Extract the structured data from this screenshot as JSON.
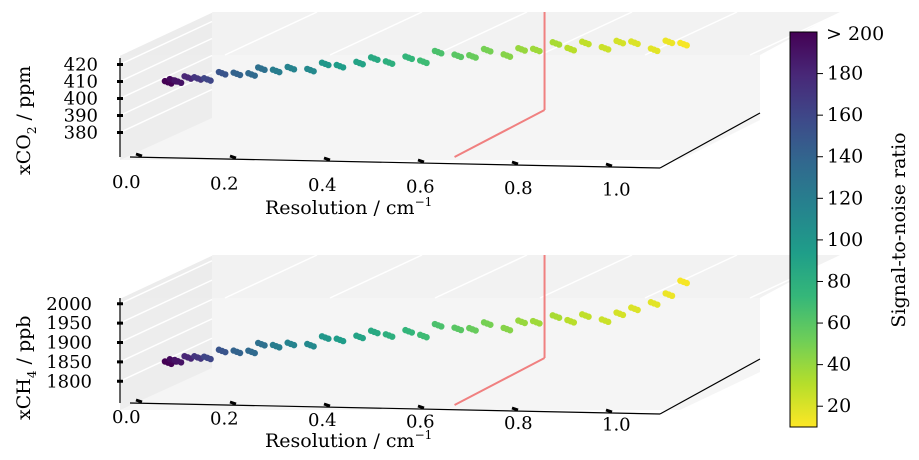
{
  "chart_data": [
    {
      "type": "scatter",
      "panel": "top",
      "xlabel": "Resolution / cm",
      "xlabel_sup": "−1",
      "ylabel": "xCO",
      "ylabel_sub": "2",
      "ylabel_unit": " / ppm",
      "xticks": [
        "0.0",
        "0.2",
        "0.4",
        "0.6",
        "0.8",
        "1.0"
      ],
      "xtick_values": [
        0.0,
        0.2,
        0.4,
        0.6,
        0.8,
        1.0
      ],
      "yticks": [
        "380",
        "390",
        "400",
        "410",
        "420"
      ],
      "ytick_values": [
        380,
        390,
        400,
        410,
        420
      ],
      "xlim": [
        0.0,
        1.1
      ],
      "ylim": [
        375,
        425
      ],
      "grid": true,
      "marker_line": {
        "x": 0.6,
        "color": "#f08080"
      },
      "series": [
        {
          "x": [
            0.01,
            0.02,
            0.03,
            0.05,
            0.07,
            0.09,
            0.12,
            0.15,
            0.18,
            0.2,
            0.23,
            0.26,
            0.3,
            0.33,
            0.36,
            0.4,
            0.43,
            0.46,
            0.5,
            0.53,
            0.56,
            0.6,
            0.63,
            0.66,
            0.7,
            0.73,
            0.76,
            0.8,
            0.83,
            0.86,
            0.9,
            0.93,
            0.96,
            1.0,
            1.03,
            1.06
          ],
          "y": [
            410,
            411,
            410,
            412,
            411,
            410,
            413,
            412,
            411,
            414,
            412,
            413,
            411,
            414,
            412,
            413,
            415,
            412,
            414,
            411,
            416,
            413,
            412,
            415,
            411,
            414,
            413,
            416,
            412,
            415,
            411,
            414,
            413,
            408,
            412,
            410
          ],
          "snr": [
            200,
            195,
            190,
            180,
            170,
            160,
            150,
            140,
            135,
            130,
            120,
            115,
            110,
            100,
            95,
            90,
            85,
            80,
            75,
            70,
            65,
            60,
            55,
            50,
            45,
            40,
            38,
            35,
            30,
            28,
            25,
            22,
            20,
            18,
            15,
            12
          ]
        }
      ]
    },
    {
      "type": "scatter",
      "panel": "bottom",
      "xlabel": "Resolution / cm",
      "xlabel_sup": "−1",
      "ylabel": "xCH",
      "ylabel_sub": "4",
      "ylabel_unit": " / ppb",
      "xticks": [
        "0.0",
        "0.2",
        "0.4",
        "0.6",
        "0.8",
        "1.0"
      ],
      "xtick_values": [
        0.0,
        0.2,
        0.4,
        0.6,
        0.8,
        1.0
      ],
      "yticks": [
        "1800",
        "1850",
        "1900",
        "1950",
        "2000"
      ],
      "ytick_values": [
        1800,
        1850,
        1900,
        1950,
        2000
      ],
      "xlim": [
        0.0,
        1.1
      ],
      "ylim": [
        1780,
        2020
      ],
      "grid": true,
      "marker_line": {
        "x": 0.6,
        "color": "#f08080"
      },
      "series": [
        {
          "x": [
            0.01,
            0.02,
            0.03,
            0.05,
            0.07,
            0.09,
            0.12,
            0.15,
            0.18,
            0.2,
            0.23,
            0.26,
            0.3,
            0.33,
            0.36,
            0.4,
            0.43,
            0.46,
            0.5,
            0.53,
            0.56,
            0.6,
            0.63,
            0.66,
            0.7,
            0.73,
            0.76,
            0.8,
            0.83,
            0.86,
            0.9,
            0.93,
            0.96,
            1.0,
            1.03,
            1.06
          ],
          "y": [
            1850,
            1855,
            1852,
            1860,
            1858,
            1855,
            1870,
            1865,
            1862,
            1880,
            1872,
            1875,
            1868,
            1885,
            1876,
            1880,
            1890,
            1878,
            1885,
            1870,
            1895,
            1882,
            1878,
            1890,
            1872,
            1888,
            1884,
            1895,
            1880,
            1892,
            1875,
            1890,
            1900,
            1910,
            1930,
            1960
          ],
          "snr": [
            200,
            195,
            190,
            180,
            170,
            160,
            150,
            140,
            135,
            130,
            120,
            115,
            110,
            100,
            95,
            90,
            85,
            80,
            75,
            70,
            65,
            60,
            55,
            50,
            45,
            40,
            38,
            35,
            30,
            28,
            25,
            22,
            20,
            18,
            15,
            12
          ]
        }
      ]
    }
  ],
  "colorbar": {
    "label": "Signal-to-noise ratio",
    "top_label": "> 200",
    "ticks": [
      "180",
      "160",
      "140",
      "120",
      "100",
      "80",
      "60",
      "40",
      "20"
    ],
    "tick_values": [
      180,
      160,
      140,
      120,
      100,
      80,
      60,
      40,
      20
    ],
    "range": [
      10,
      200
    ],
    "colormap": "viridis_r"
  },
  "colors": {
    "viridis": [
      "#440154",
      "#482878",
      "#3e4989",
      "#31688e",
      "#26828e",
      "#1f9e89",
      "#35b779",
      "#6ece58",
      "#b5de2b",
      "#fde725"
    ],
    "marker_line": "#f08080"
  }
}
